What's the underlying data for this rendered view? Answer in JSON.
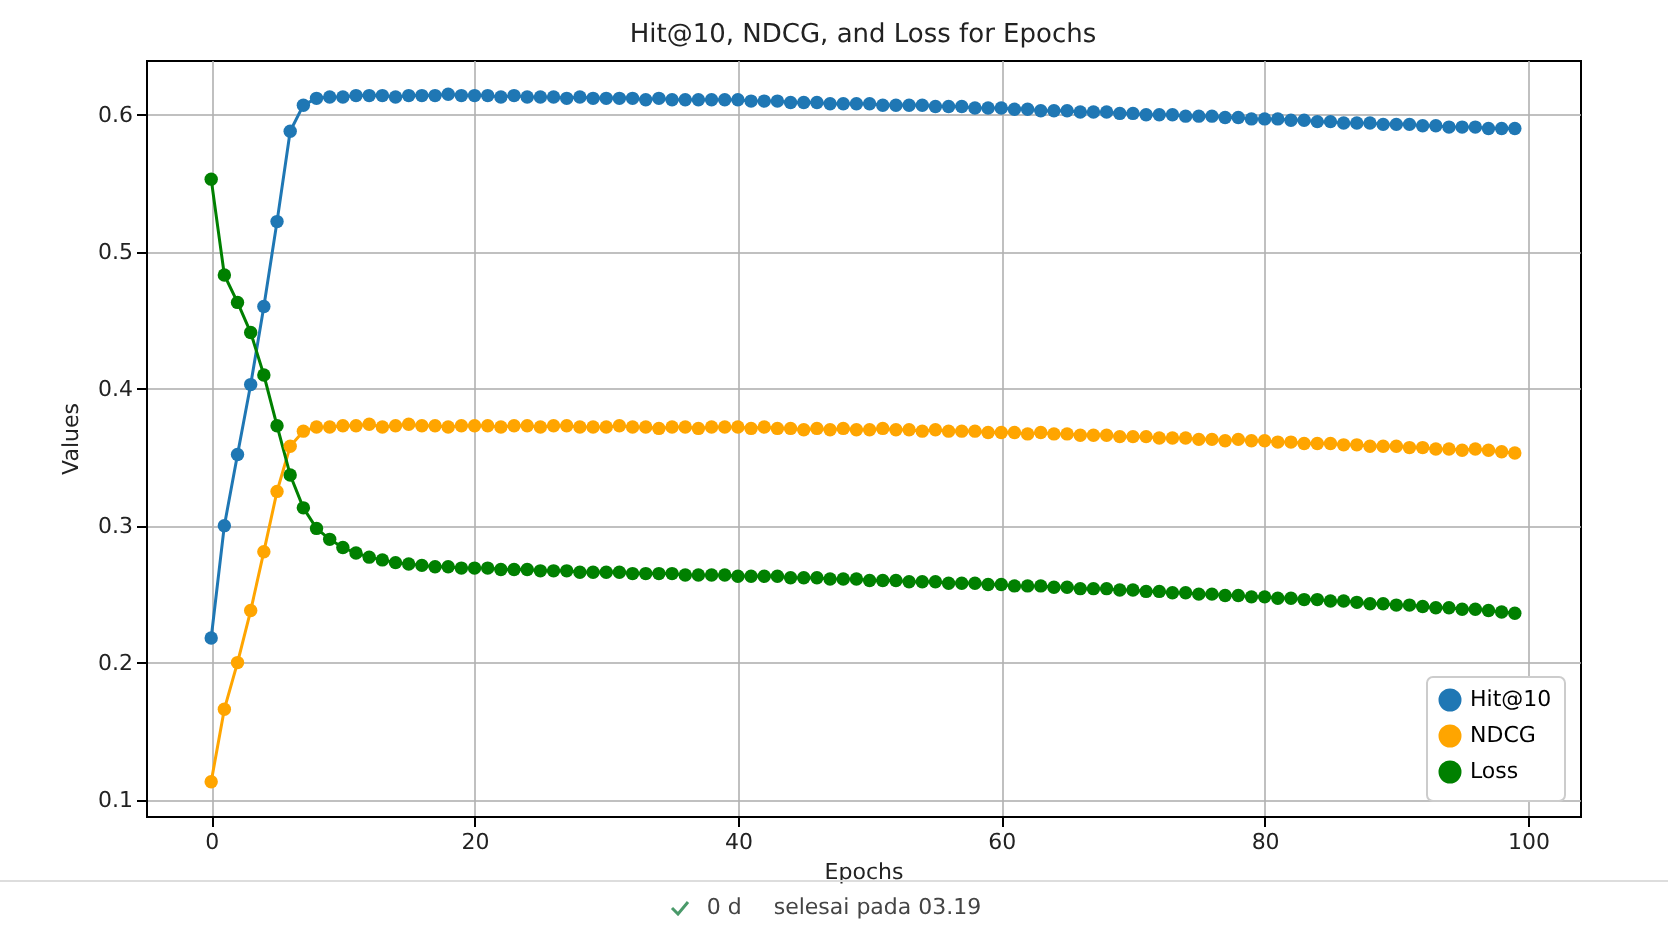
{
  "chart_data": {
    "type": "line",
    "title": "Hit@10, NDCG, and Loss for Epochs",
    "xlabel": "Epochs",
    "ylabel": "Values",
    "x": [
      0,
      1,
      2,
      3,
      4,
      5,
      6,
      7,
      8,
      9,
      10,
      11,
      12,
      13,
      14,
      15,
      16,
      17,
      18,
      19,
      20,
      21,
      22,
      23,
      24,
      25,
      26,
      27,
      28,
      29,
      30,
      31,
      32,
      33,
      34,
      35,
      36,
      37,
      38,
      39,
      40,
      41,
      42,
      43,
      44,
      45,
      46,
      47,
      48,
      49,
      50,
      51,
      52,
      53,
      54,
      55,
      56,
      57,
      58,
      59,
      60,
      61,
      62,
      63,
      64,
      65,
      66,
      67,
      68,
      69,
      70,
      71,
      72,
      73,
      74,
      75,
      76,
      77,
      78,
      79,
      80,
      81,
      82,
      83,
      84,
      85,
      86,
      87,
      88,
      89,
      90,
      91,
      92,
      93,
      94,
      95,
      96,
      97,
      98,
      99
    ],
    "series": [
      {
        "name": "Hit@10",
        "color": "#1f77b4",
        "values": [
          0.218,
          0.3,
          0.352,
          0.403,
          0.46,
          0.522,
          0.588,
          0.607,
          0.612,
          0.613,
          0.613,
          0.614,
          0.614,
          0.614,
          0.613,
          0.614,
          0.614,
          0.614,
          0.615,
          0.614,
          0.614,
          0.614,
          0.613,
          0.614,
          0.613,
          0.613,
          0.613,
          0.612,
          0.613,
          0.612,
          0.612,
          0.612,
          0.612,
          0.611,
          0.612,
          0.611,
          0.611,
          0.611,
          0.611,
          0.611,
          0.611,
          0.61,
          0.61,
          0.61,
          0.609,
          0.609,
          0.609,
          0.608,
          0.608,
          0.608,
          0.608,
          0.607,
          0.607,
          0.607,
          0.607,
          0.606,
          0.606,
          0.606,
          0.605,
          0.605,
          0.605,
          0.604,
          0.604,
          0.603,
          0.603,
          0.603,
          0.602,
          0.602,
          0.602,
          0.601,
          0.601,
          0.6,
          0.6,
          0.6,
          0.599,
          0.599,
          0.599,
          0.598,
          0.598,
          0.597,
          0.597,
          0.597,
          0.596,
          0.596,
          0.595,
          0.595,
          0.594,
          0.594,
          0.594,
          0.593,
          0.593,
          0.593,
          0.592,
          0.592,
          0.591,
          0.591,
          0.591,
          0.59,
          0.59,
          0.59
        ]
      },
      {
        "name": "NDCG",
        "color": "#ffa500",
        "values": [
          0.113,
          0.166,
          0.2,
          0.238,
          0.281,
          0.325,
          0.358,
          0.369,
          0.372,
          0.372,
          0.373,
          0.373,
          0.374,
          0.372,
          0.373,
          0.374,
          0.373,
          0.373,
          0.372,
          0.373,
          0.373,
          0.373,
          0.372,
          0.373,
          0.373,
          0.372,
          0.373,
          0.373,
          0.372,
          0.372,
          0.372,
          0.373,
          0.372,
          0.372,
          0.371,
          0.372,
          0.372,
          0.371,
          0.372,
          0.372,
          0.372,
          0.371,
          0.372,
          0.371,
          0.371,
          0.37,
          0.371,
          0.37,
          0.371,
          0.37,
          0.37,
          0.371,
          0.37,
          0.37,
          0.369,
          0.37,
          0.369,
          0.369,
          0.369,
          0.368,
          0.368,
          0.368,
          0.367,
          0.368,
          0.367,
          0.367,
          0.366,
          0.366,
          0.366,
          0.365,
          0.365,
          0.365,
          0.364,
          0.364,
          0.364,
          0.363,
          0.363,
          0.362,
          0.363,
          0.362,
          0.362,
          0.361,
          0.361,
          0.36,
          0.36,
          0.36,
          0.359,
          0.359,
          0.358,
          0.358,
          0.358,
          0.357,
          0.357,
          0.356,
          0.356,
          0.355,
          0.356,
          0.355,
          0.354,
          0.353
        ]
      },
      {
        "name": "Loss",
        "color": "#008000",
        "values": [
          0.553,
          0.483,
          0.463,
          0.441,
          0.41,
          0.373,
          0.337,
          0.313,
          0.298,
          0.29,
          0.284,
          0.28,
          0.277,
          0.275,
          0.273,
          0.272,
          0.271,
          0.27,
          0.27,
          0.269,
          0.269,
          0.269,
          0.268,
          0.268,
          0.268,
          0.267,
          0.267,
          0.267,
          0.266,
          0.266,
          0.266,
          0.266,
          0.265,
          0.265,
          0.265,
          0.265,
          0.264,
          0.264,
          0.264,
          0.264,
          0.263,
          0.263,
          0.263,
          0.263,
          0.262,
          0.262,
          0.262,
          0.261,
          0.261,
          0.261,
          0.26,
          0.26,
          0.26,
          0.259,
          0.259,
          0.259,
          0.258,
          0.258,
          0.258,
          0.257,
          0.257,
          0.256,
          0.256,
          0.256,
          0.255,
          0.255,
          0.254,
          0.254,
          0.254,
          0.253,
          0.253,
          0.252,
          0.252,
          0.251,
          0.251,
          0.25,
          0.25,
          0.249,
          0.249,
          0.248,
          0.248,
          0.247,
          0.247,
          0.246,
          0.246,
          0.245,
          0.245,
          0.244,
          0.243,
          0.243,
          0.242,
          0.242,
          0.241,
          0.24,
          0.24,
          0.239,
          0.239,
          0.238,
          0.237,
          0.236
        ]
      }
    ],
    "xlim": [
      -4.95,
      103.95
    ],
    "xticks": [
      0,
      20,
      40,
      60,
      80,
      100
    ],
    "ylim": [
      0.088,
      0.64
    ],
    "yticks": [
      0.1,
      0.2,
      0.3,
      0.4,
      0.5,
      0.6
    ],
    "grid": true,
    "legend": "bottom right",
    "marker": "circle",
    "line_style": "solid",
    "annotations": [
      "0 d",
      "selesai pada 03.19"
    ]
  }
}
